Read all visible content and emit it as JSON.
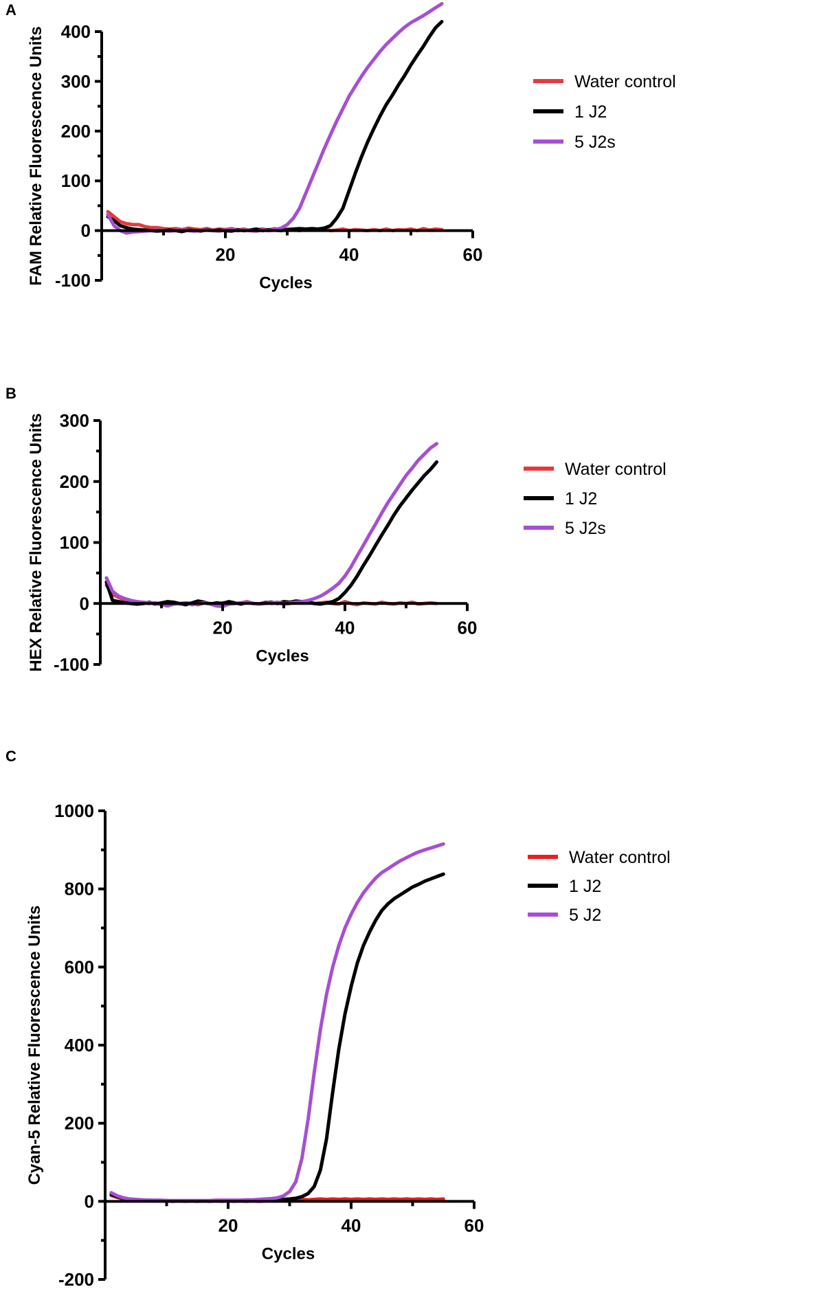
{
  "chart_data": [
    {
      "panel_label": "A",
      "type": "line",
      "xlabel": "Cycles",
      "ylabel": "FAM Relative Fluorescence Units",
      "xlim": [
        0,
        60
      ],
      "ylim": [
        -100,
        400
      ],
      "xticks": [
        20,
        40,
        60
      ],
      "yticks": [
        400,
        300,
        200,
        100,
        0,
        -100
      ],
      "series": [
        {
          "name": "Water control",
          "color": "#e8383d",
          "x": [
            1,
            2,
            3,
            4,
            5,
            6,
            7,
            8,
            9,
            10,
            11,
            12,
            13,
            14,
            15,
            16,
            17,
            18,
            19,
            20,
            21,
            22,
            23,
            24,
            25,
            26,
            27,
            28,
            29,
            30,
            31,
            32,
            33,
            34,
            35,
            36,
            37,
            38,
            39,
            40,
            41,
            42,
            43,
            44,
            45,
            46,
            47,
            48,
            49,
            50,
            51,
            52,
            53,
            54,
            55
          ],
          "y": [
            38,
            28,
            18,
            14,
            12,
            12,
            8,
            6,
            6,
            4,
            3,
            4,
            2,
            5,
            3,
            2,
            4,
            1,
            3,
            2,
            4,
            1,
            3,
            0,
            2,
            3,
            1,
            4,
            0,
            3,
            2,
            0,
            3,
            1,
            2,
            4,
            0,
            1,
            3,
            0,
            2,
            1,
            0,
            2,
            0,
            3,
            0,
            2,
            1,
            3,
            0,
            4,
            1,
            3,
            2
          ]
        },
        {
          "name": "1 J2",
          "color": "#000000",
          "x": [
            1,
            2,
            3,
            4,
            5,
            6,
            7,
            8,
            9,
            10,
            11,
            12,
            13,
            14,
            15,
            16,
            17,
            18,
            19,
            20,
            21,
            22,
            23,
            24,
            25,
            26,
            27,
            28,
            29,
            30,
            31,
            32,
            33,
            34,
            35,
            36,
            37,
            38,
            39,
            40,
            41,
            42,
            43,
            44,
            45,
            46,
            47,
            48,
            49,
            50,
            51,
            52,
            53,
            54,
            55
          ],
          "y": [
            28,
            20,
            10,
            6,
            3,
            2,
            1,
            0,
            -1,
            0,
            1,
            0,
            -2,
            1,
            0,
            -1,
            2,
            0,
            1,
            0,
            -1,
            2,
            0,
            1,
            3,
            0,
            2,
            1,
            0,
            2,
            3,
            4,
            3,
            4,
            3,
            5,
            10,
            25,
            45,
            80,
            115,
            148,
            178,
            205,
            230,
            253,
            272,
            293,
            312,
            333,
            352,
            370,
            390,
            408,
            420
          ]
        },
        {
          "name": "5 J2s",
          "color": "#a64fd3",
          "x": [
            1,
            2,
            3,
            4,
            5,
            6,
            7,
            8,
            9,
            10,
            11,
            12,
            13,
            14,
            15,
            16,
            17,
            18,
            19,
            20,
            21,
            22,
            23,
            24,
            25,
            26,
            27,
            28,
            29,
            30,
            31,
            32,
            33,
            34,
            35,
            36,
            37,
            38,
            39,
            40,
            41,
            42,
            43,
            44,
            45,
            46,
            47,
            48,
            49,
            50,
            51,
            52,
            53,
            54,
            55
          ],
          "y": [
            32,
            10,
            0,
            -5,
            -3,
            -2,
            -1,
            0,
            1,
            0,
            -1,
            0,
            1,
            0,
            -1,
            0,
            1,
            0,
            -1,
            1,
            2,
            0,
            1,
            0,
            -1,
            1,
            0,
            2,
            5,
            12,
            25,
            45,
            75,
            105,
            135,
            165,
            193,
            220,
            245,
            270,
            290,
            310,
            328,
            344,
            360,
            374,
            386,
            398,
            409,
            418,
            425,
            432,
            440,
            448,
            456
          ]
        }
      ]
    },
    {
      "panel_label": "B",
      "type": "line",
      "xlabel": "Cycles",
      "ylabel": "HEX Relative Fluorescence Units",
      "xlim": [
        0,
        60
      ],
      "ylim": [
        -100,
        300
      ],
      "xticks": [
        20,
        40,
        60
      ],
      "yticks": [
        300,
        200,
        100,
        0,
        -100
      ],
      "series": [
        {
          "name": "Water control",
          "color": "#e8383d",
          "x": [
            1,
            2,
            3,
            4,
            5,
            6,
            7,
            8,
            9,
            10,
            11,
            12,
            13,
            14,
            15,
            16,
            17,
            18,
            19,
            20,
            21,
            22,
            23,
            24,
            25,
            26,
            27,
            28,
            29,
            30,
            31,
            32,
            33,
            34,
            35,
            36,
            37,
            38,
            39,
            40,
            41,
            42,
            43,
            44,
            45,
            46,
            47,
            48,
            49,
            50,
            51,
            52,
            53,
            54,
            55
          ],
          "y": [
            30,
            15,
            10,
            6,
            4,
            2,
            1,
            0,
            1,
            -1,
            0,
            2,
            -1,
            1,
            0,
            -2,
            1,
            0,
            -1,
            1,
            2,
            0,
            1,
            3,
            0,
            -1,
            2,
            0,
            1,
            -1,
            0,
            2,
            1,
            3,
            0,
            1,
            2,
            0,
            -1,
            3,
            0,
            -2,
            1,
            0,
            -1,
            2,
            0,
            -1,
            1,
            0,
            2,
            -1,
            0,
            1,
            0
          ]
        },
        {
          "name": "1 J2",
          "color": "#000000",
          "x": [
            1,
            2,
            3,
            4,
            5,
            6,
            7,
            8,
            9,
            10,
            11,
            12,
            13,
            14,
            15,
            16,
            17,
            18,
            19,
            20,
            21,
            22,
            23,
            24,
            25,
            26,
            27,
            28,
            29,
            30,
            31,
            32,
            33,
            34,
            35,
            36,
            37,
            38,
            39,
            40,
            41,
            42,
            43,
            44,
            45,
            46,
            47,
            48,
            49,
            50,
            51,
            52,
            53,
            54,
            55
          ],
          "y": [
            35,
            5,
            3,
            1,
            0,
            -1,
            0,
            2,
            -1,
            1,
            3,
            2,
            0,
            -2,
            1,
            4,
            2,
            -1,
            1,
            0,
            3,
            1,
            -1,
            2,
            0,
            -1,
            1,
            2,
            0,
            3,
            2,
            4,
            3,
            2,
            0,
            -1,
            1,
            3,
            8,
            18,
            30,
            45,
            62,
            78,
            95,
            112,
            128,
            145,
            160,
            173,
            186,
            198,
            210,
            220,
            232
          ]
        },
        {
          "name": "5 J2s",
          "color": "#a64fd3",
          "x": [
            1,
            2,
            3,
            4,
            5,
            6,
            7,
            8,
            9,
            10,
            11,
            12,
            13,
            14,
            15,
            16,
            17,
            18,
            19,
            20,
            21,
            22,
            23,
            24,
            25,
            26,
            27,
            28,
            29,
            30,
            31,
            32,
            33,
            34,
            35,
            36,
            37,
            38,
            39,
            40,
            41,
            42,
            43,
            44,
            45,
            46,
            47,
            48,
            49,
            50,
            51,
            52,
            53,
            54,
            55
          ],
          "y": [
            42,
            20,
            12,
            8,
            5,
            3,
            2,
            1,
            0,
            -2,
            -4,
            -1,
            0,
            1,
            -2,
            0,
            1,
            -1,
            -4,
            -5,
            -1,
            0,
            1,
            2,
            0,
            -1,
            0,
            1,
            2,
            0,
            1,
            2,
            3,
            5,
            8,
            12,
            18,
            25,
            33,
            45,
            60,
            78,
            95,
            113,
            130,
            148,
            165,
            180,
            195,
            210,
            222,
            235,
            245,
            255,
            262
          ]
        }
      ]
    },
    {
      "panel_label": "C",
      "type": "line",
      "xlabel": "Cycles",
      "ylabel": "Cyan-5 Relative Fluorescence Units",
      "xlim": [
        0,
        60
      ],
      "ylim": [
        -200,
        1000
      ],
      "xticks": [
        20,
        40,
        60
      ],
      "yticks": [
        1000,
        800,
        600,
        400,
        200,
        0,
        -200
      ],
      "series": [
        {
          "name": "Water control",
          "color": "#ee1c1c",
          "x": [
            1,
            2,
            3,
            4,
            5,
            6,
            7,
            8,
            9,
            10,
            11,
            12,
            13,
            14,
            15,
            16,
            17,
            18,
            19,
            20,
            21,
            22,
            23,
            24,
            25,
            26,
            27,
            28,
            29,
            30,
            31,
            32,
            33,
            34,
            35,
            36,
            37,
            38,
            39,
            40,
            41,
            42,
            43,
            44,
            45,
            46,
            47,
            48,
            49,
            50,
            51,
            52,
            53,
            54,
            55
          ],
          "y": [
            15,
            10,
            6,
            4,
            3,
            2,
            2,
            1,
            1,
            1,
            0,
            1,
            0,
            1,
            0,
            1,
            0,
            1,
            0,
            1,
            0,
            1,
            0,
            1,
            0,
            1,
            2,
            1,
            2,
            3,
            4,
            5,
            4,
            5,
            6,
            5,
            6,
            5,
            6,
            5,
            6,
            5,
            6,
            5,
            6,
            5,
            6,
            5,
            6,
            5,
            6,
            5,
            6,
            5,
            6
          ]
        },
        {
          "name": "1 J2",
          "color": "#000000",
          "x": [
            1,
            2,
            3,
            4,
            5,
            6,
            7,
            8,
            9,
            10,
            11,
            12,
            13,
            14,
            15,
            16,
            17,
            18,
            19,
            20,
            21,
            22,
            23,
            24,
            25,
            26,
            27,
            28,
            29,
            30,
            31,
            32,
            33,
            34,
            35,
            36,
            37,
            38,
            39,
            40,
            41,
            42,
            43,
            44,
            45,
            46,
            47,
            48,
            49,
            50,
            51,
            52,
            53,
            54,
            55
          ],
          "y": [
            18,
            12,
            8,
            5,
            4,
            3,
            3,
            2,
            2,
            2,
            1,
            1,
            1,
            1,
            1,
            1,
            1,
            2,
            2,
            2,
            2,
            2,
            3,
            3,
            3,
            4,
            4,
            5,
            5,
            6,
            8,
            12,
            20,
            38,
            80,
            160,
            280,
            390,
            480,
            550,
            610,
            655,
            690,
            720,
            745,
            762,
            775,
            785,
            795,
            805,
            812,
            820,
            826,
            832,
            838
          ]
        },
        {
          "name": "5 J2",
          "color": "#a64fd3",
          "x": [
            1,
            2,
            3,
            4,
            5,
            6,
            7,
            8,
            9,
            10,
            11,
            12,
            13,
            14,
            15,
            16,
            17,
            18,
            19,
            20,
            21,
            22,
            23,
            24,
            25,
            26,
            27,
            28,
            29,
            30,
            31,
            32,
            33,
            34,
            35,
            36,
            37,
            38,
            39,
            40,
            41,
            42,
            43,
            44,
            45,
            46,
            47,
            48,
            49,
            50,
            51,
            52,
            53,
            54,
            55
          ],
          "y": [
            22,
            14,
            9,
            6,
            5,
            4,
            3,
            3,
            3,
            2,
            2,
            2,
            2,
            2,
            2,
            2,
            2,
            3,
            3,
            3,
            3,
            3,
            4,
            4,
            5,
            6,
            7,
            9,
            14,
            25,
            50,
            110,
            210,
            330,
            440,
            530,
            600,
            655,
            700,
            735,
            765,
            790,
            810,
            828,
            842,
            852,
            862,
            872,
            880,
            888,
            895,
            900,
            905,
            910,
            915
          ]
        }
      ]
    }
  ]
}
